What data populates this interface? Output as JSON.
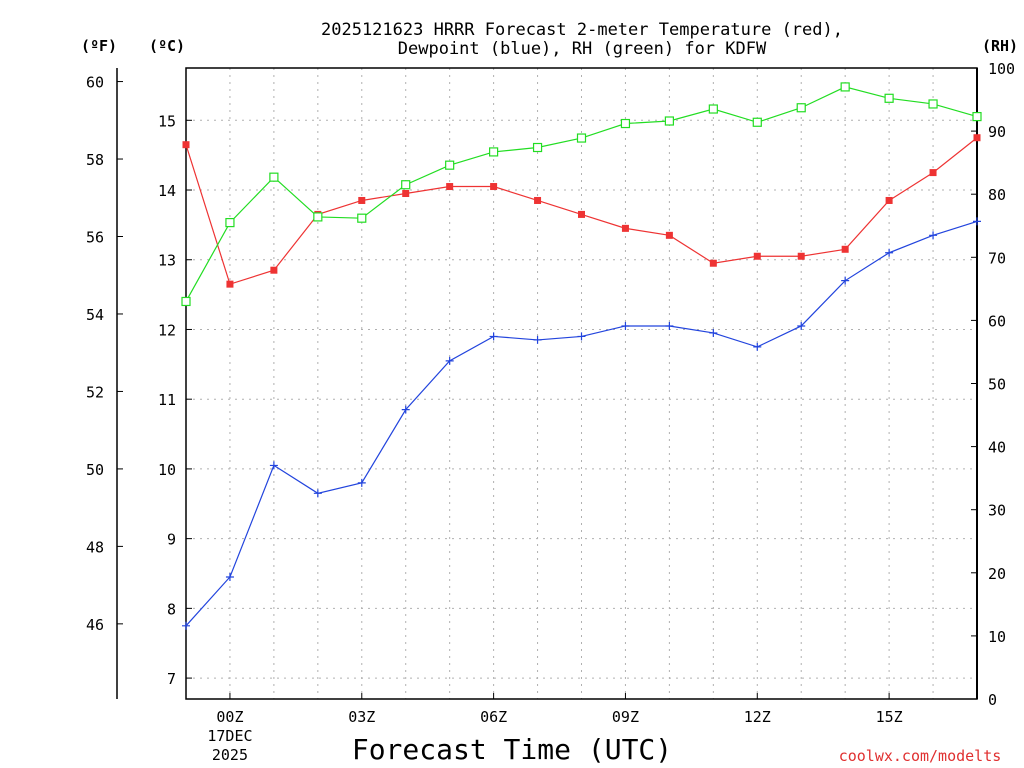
{
  "chart_data": {
    "type": "line",
    "title_line1": "2025121623 HRRR Forecast 2-meter Temperature (red),",
    "title_line2": "Dewpoint (blue), RH (green) for KDFW",
    "xlabel": "Forecast Time (UTC)",
    "credit": "coolwx.com/modelts",
    "units": {
      "fahrenheit": "(ºF)",
      "celsius": "(ºC)",
      "rh": "(RH)"
    },
    "x_hours": [
      -1,
      0,
      1,
      2,
      3,
      4,
      5,
      6,
      7,
      8,
      9,
      10,
      11,
      12,
      13,
      14,
      15,
      16,
      17
    ],
    "x_ticks": [
      {
        "hour": 0,
        "label": "00Z",
        "date": "17DEC",
        "year": "2025"
      },
      {
        "hour": 3,
        "label": "03Z"
      },
      {
        "hour": 6,
        "label": "06Z"
      },
      {
        "hour": 9,
        "label": "09Z"
      },
      {
        "hour": 12,
        "label": "12Z"
      },
      {
        "hour": 15,
        "label": "15Z"
      }
    ],
    "celsius_axis": {
      "min": 6.7,
      "max": 15.75,
      "ticks": [
        7,
        8,
        9,
        10,
        11,
        12,
        13,
        14,
        15
      ]
    },
    "fahrenheit_ticks": [
      46,
      48,
      50,
      52,
      54,
      56,
      58,
      60
    ],
    "rh_axis": {
      "min": 0,
      "max": 100,
      "ticks": [
        0,
        10,
        20,
        30,
        40,
        50,
        60,
        70,
        80,
        90,
        100
      ]
    },
    "series": [
      {
        "name": "Temperature",
        "color": "#ee3333",
        "axis": "celsius",
        "marker": "filled-square",
        "values": [
          14.65,
          12.65,
          12.85,
          13.65,
          13.85,
          13.95,
          14.05,
          14.05,
          13.85,
          13.65,
          13.45,
          13.35,
          12.95,
          13.05,
          13.05,
          13.15,
          13.85,
          14.25,
          14.75
        ]
      },
      {
        "name": "Dewpoint",
        "color": "#2244dd",
        "axis": "celsius",
        "marker": "plus",
        "values": [
          7.75,
          8.45,
          10.05,
          9.65,
          9.8,
          10.85,
          11.55,
          11.9,
          11.85,
          11.9,
          12.05,
          12.05,
          11.95,
          11.75,
          12.05,
          12.7,
          13.1,
          13.35,
          13.55
        ]
      },
      {
        "name": "RH",
        "color": "#22dd22",
        "axis": "rh",
        "marker": "open-square",
        "values": [
          63,
          75.5,
          82.7,
          76.4,
          76.2,
          81.5,
          84.6,
          86.7,
          87.4,
          88.9,
          91.2,
          91.6,
          93.5,
          91.4,
          93.7,
          97,
          95.2,
          94.3,
          92.3
        ]
      }
    ]
  }
}
